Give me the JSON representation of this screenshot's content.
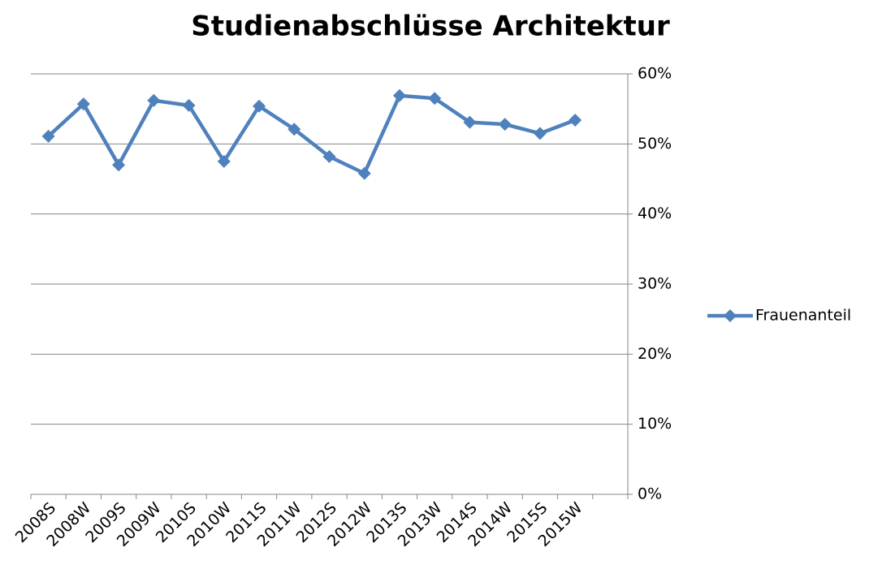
{
  "chart_data": {
    "type": "line",
    "title": "Studienabschlüsse Architektur",
    "categories": [
      "2008S",
      "2008W",
      "2009S",
      "2009W",
      "2010S",
      "2010W",
      "2011S",
      "2011W",
      "2012S",
      "2012W",
      "2013S",
      "2013W",
      "2014S",
      "2014W",
      "2015S",
      "2015W",
      null
    ],
    "series": [
      {
        "name": "Frauenanteil",
        "color": "#4f81bd",
        "values": [
          51.1,
          55.7,
          47.0,
          56.2,
          55.5,
          47.5,
          55.4,
          52.1,
          48.2,
          45.8,
          56.9,
          56.5,
          53.1,
          52.8,
          51.5,
          53.4,
          null
        ]
      }
    ],
    "ylim": [
      0,
      60
    ],
    "yticks": [
      {
        "value": 0,
        "label": "0%"
      },
      {
        "value": 10,
        "label": "10%"
      },
      {
        "value": 20,
        "label": "20%"
      },
      {
        "value": 30,
        "label": "30%"
      },
      {
        "value": 40,
        "label": "40%"
      },
      {
        "value": 50,
        "label": "50%"
      },
      {
        "value": 60,
        "label": "60%"
      }
    ],
    "grid": true,
    "legend": "right"
  }
}
